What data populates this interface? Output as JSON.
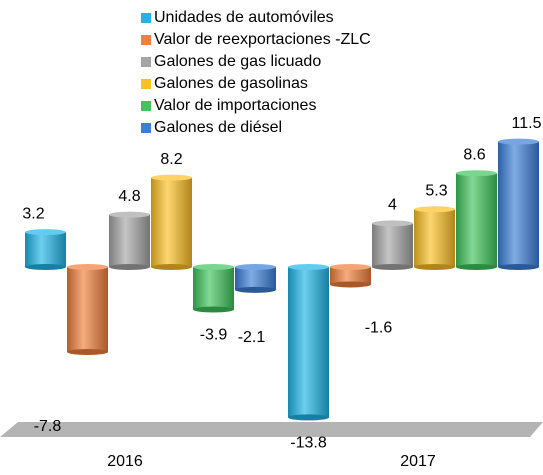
{
  "chart_data": {
    "type": "bar",
    "categories": [
      "2016",
      "2017"
    ],
    "series": [
      {
        "name": "Unidades de automóviles",
        "color": "#1fb5e8",
        "values": [
          3.2,
          -13.8
        ]
      },
      {
        "name": "Valor de reexportaciones -ZLC",
        "color": "#f07f3a",
        "values": [
          -7.8,
          -1.6
        ]
      },
      {
        "name": "Galones de gas licuado",
        "color": "#a5a5a5",
        "values": [
          4.8,
          4.0
        ]
      },
      {
        "name": "Galones de gasolinas",
        "color": "#fcc023",
        "values": [
          8.2,
          5.3
        ]
      },
      {
        "name": "Valor de importaciones",
        "color": "#3fc55c",
        "values": [
          -3.9,
          8.6
        ]
      },
      {
        "name": "Galones de diésel",
        "color": "#3b7fd8",
        "values": [
          -2.1,
          11.5
        ]
      }
    ]
  }
}
